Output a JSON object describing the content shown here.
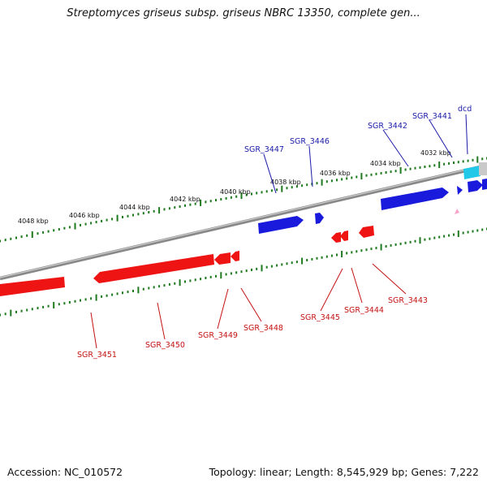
{
  "title": "Streptomyces griseus subsp. griseus NBRC 13350, complete gen...",
  "footer": {
    "accession": "Accession: NC_010572",
    "stats": "Topology: linear; Length: 8,545,929 bp; Genes: 7,222"
  },
  "colors": {
    "forward_gene": "#0a14e6",
    "reverse_gene": "#ee0a0a",
    "forward_label": "#1a1aa8",
    "reverse_label": "#c41212",
    "highlight_gene": "#22c8e8",
    "pseudo_gene": "#f7a4c8",
    "scale_ticks": "#1f7a1f",
    "backbone": "#8a8a8a"
  },
  "scale": {
    "unit": "kbp",
    "labels": [
      "4048 kbp",
      "4046 kbp",
      "4044 kbp",
      "4042 kbp",
      "4040 kbp",
      "4038 kbp",
      "4036 kbp",
      "4034 kbp",
      "4032 kbp"
    ]
  },
  "genes": {
    "forward": [
      {
        "id": "SGR_3447"
      },
      {
        "id": "SGR_3446"
      },
      {
        "id": "SGR_3442"
      },
      {
        "id": "SGR_3441"
      },
      {
        "id": "dcd"
      }
    ],
    "reverse": [
      {
        "id": "SGR_3451"
      },
      {
        "id": "SGR_3450"
      },
      {
        "id": "SGR_3449"
      },
      {
        "id": "SGR_3448"
      },
      {
        "id": "SGR_3445"
      },
      {
        "id": "SGR_3444"
      },
      {
        "id": "SGR_3443"
      }
    ]
  }
}
